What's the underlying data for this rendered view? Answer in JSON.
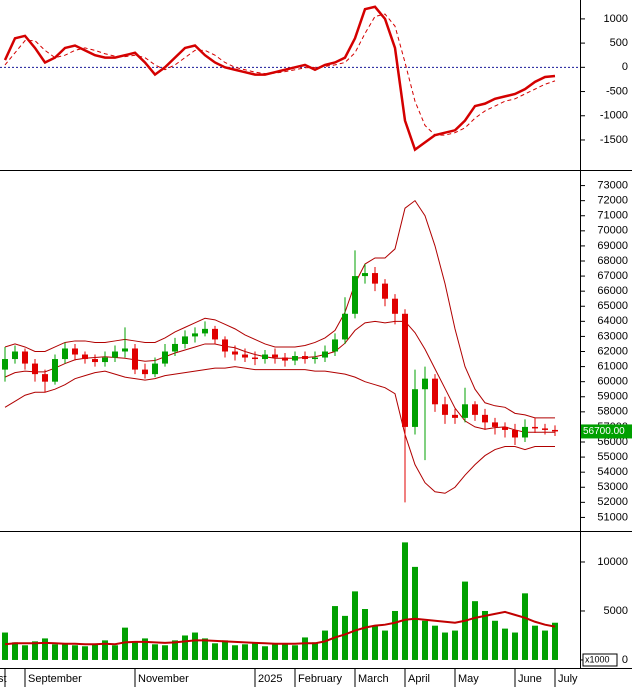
{
  "chart_data": [
    {
      "type": "line",
      "ylim": [
        -2120,
        1390
      ],
      "yticks": [
        1000,
        500,
        0,
        -500,
        -1000,
        -1500
      ],
      "zero_line": 0,
      "series": [
        {
          "color": "#d40000",
          "style": "solid",
          "values": [
            150,
            600,
            650,
            400,
            100,
            200,
            400,
            450,
            350,
            250,
            200,
            200,
            250,
            300,
            100,
            -150,
            0,
            200,
            400,
            450,
            250,
            100,
            0,
            -50,
            -100,
            -150,
            -150,
            -100,
            -50,
            0,
            50,
            -50,
            50,
            100,
            200,
            600,
            1200,
            1250,
            1000,
            400,
            -1100,
            -1700,
            -1550,
            -1400,
            -1350,
            -1300,
            -1100,
            -800,
            -750,
            -650,
            -600,
            -550,
            -450,
            -300,
            -200,
            -180
          ]
        },
        {
          "color": "#d40000",
          "style": "dashed",
          "values": [
            50,
            300,
            550,
            550,
            350,
            200,
            250,
            350,
            400,
            350,
            280,
            230,
            220,
            250,
            200,
            50,
            -50,
            50,
            200,
            350,
            350,
            250,
            100,
            0,
            -50,
            -100,
            -130,
            -120,
            -90,
            -50,
            -10,
            0,
            20,
            50,
            100,
            300,
            700,
            1050,
            1100,
            850,
            100,
            -700,
            -1200,
            -1400,
            -1400,
            -1350,
            -1250,
            -1050,
            -900,
            -800,
            -700,
            -650,
            -550,
            -450,
            -350,
            -280
          ]
        }
      ]
    },
    {
      "type": "candlestick",
      "ylim": [
        50100,
        73900
      ],
      "yticks": [
        51000,
        52000,
        53000,
        54000,
        55000,
        56000,
        57000,
        58000,
        59000,
        60000,
        61000,
        62000,
        63000,
        64000,
        65000,
        66000,
        67000,
        68000,
        69000,
        70000,
        71000,
        72000,
        73000
      ],
      "up_color": "#00a000",
      "down_color": "#e00000",
      "open": [
        60800,
        61500,
        62000,
        61200,
        60500,
        60000,
        61500,
        62200,
        61800,
        61500,
        61300,
        61600,
        62000,
        62200,
        60800,
        60500,
        61200,
        62000,
        62500,
        63000,
        63200,
        63500,
        62800,
        62000,
        61800,
        61600,
        61500,
        61800,
        61600,
        61400,
        61700,
        61500,
        61600,
        62000,
        62800,
        64500,
        67000,
        67200,
        66500,
        65500,
        64500,
        57000,
        59500,
        60200,
        58500,
        57800,
        57600,
        58500,
        57800,
        57300,
        57000,
        56800,
        56300,
        57000,
        56900,
        56800
      ],
      "high": [
        62300,
        62400,
        62200,
        61500,
        60800,
        61800,
        62600,
        62500,
        62000,
        61800,
        62000,
        62400,
        63600,
        62500,
        61200,
        61600,
        62500,
        62900,
        63400,
        63600,
        64000,
        63700,
        63000,
        62400,
        62200,
        62000,
        62100,
        62200,
        61900,
        62000,
        62000,
        62000,
        62400,
        63200,
        65600,
        68700,
        67800,
        67600,
        66800,
        65800,
        64800,
        60800,
        61000,
        60500,
        59000,
        58200,
        59600,
        58700,
        58200,
        57600,
        57300,
        57200,
        57500,
        57600,
        57200,
        57100
      ],
      "low": [
        60000,
        61200,
        60800,
        60000,
        59300,
        59800,
        61200,
        61400,
        61200,
        61000,
        61000,
        61300,
        61600,
        60500,
        60200,
        60300,
        61000,
        61700,
        62200,
        62600,
        63000,
        62500,
        61600,
        61400,
        61300,
        61100,
        61200,
        61200,
        61000,
        61100,
        61200,
        61200,
        61300,
        61700,
        62500,
        64200,
        66500,
        66000,
        65000,
        63800,
        52000,
        56500,
        54800,
        58000,
        57200,
        57200,
        57300,
        57400,
        56800,
        56500,
        56300,
        55800,
        56000,
        56600,
        56500,
        56400
      ],
      "close": [
        61500,
        62000,
        61200,
        60500,
        60000,
        61500,
        62200,
        61800,
        61500,
        61300,
        61600,
        62000,
        62200,
        60800,
        60500,
        61200,
        62000,
        62500,
        63000,
        63200,
        63500,
        62800,
        62000,
        61800,
        61600,
        61500,
        61800,
        61600,
        61400,
        61700,
        61500,
        61600,
        62000,
        62800,
        64500,
        67000,
        67200,
        66500,
        65500,
        64500,
        57000,
        59500,
        60200,
        58500,
        57800,
        57600,
        58500,
        57800,
        57300,
        57000,
        56800,
        56300,
        57000,
        56900,
        56800,
        56700
      ],
      "last_price": {
        "value": 56700,
        "label": "56700.00"
      },
      "series": [
        {
          "color": "#b00000",
          "values": [
            62300,
            62500,
            62300,
            62000,
            62000,
            62300,
            62600,
            62700,
            62700,
            62600,
            62600,
            62700,
            62800,
            62700,
            62600,
            62600,
            62900,
            63300,
            63600,
            63900,
            64200,
            64100,
            63800,
            63500,
            63100,
            62800,
            62500,
            62300,
            62300,
            62300,
            62400,
            62600,
            62900,
            63400,
            64600,
            66500,
            67800,
            68200,
            68200,
            68800,
            71500,
            72000,
            71000,
            69000,
            66500,
            63500,
            61000,
            59500,
            58600,
            58400,
            58300,
            57900,
            57800,
            57600,
            57600,
            57600
          ]
        },
        {
          "color": "#b00000",
          "values": [
            60300,
            60600,
            60700,
            60650,
            60650,
            60900,
            61200,
            61450,
            61550,
            61600,
            61650,
            61600,
            61550,
            61450,
            61350,
            61400,
            61650,
            61900,
            62100,
            62300,
            62500,
            62500,
            62350,
            62250,
            62000,
            61800,
            61650,
            61550,
            61550,
            61550,
            61600,
            61650,
            61800,
            62000,
            62550,
            63400,
            63900,
            64000,
            63900,
            64000,
            64000,
            63250,
            62150,
            60850,
            59550,
            58250,
            57400,
            57000,
            56850,
            56950,
            57000,
            56800,
            56650,
            56650,
            56650,
            56650
          ]
        },
        {
          "color": "#b00000",
          "values": [
            58300,
            58700,
            59100,
            59300,
            59300,
            59500,
            59800,
            60200,
            60400,
            60600,
            60700,
            60500,
            60300,
            60200,
            60100,
            60200,
            60400,
            60500,
            60600,
            60700,
            60800,
            60900,
            60900,
            61000,
            60900,
            60800,
            60800,
            60800,
            60800,
            60800,
            60800,
            60700,
            60700,
            60600,
            60500,
            60300,
            60000,
            59800,
            59600,
            59200,
            56500,
            54500,
            53300,
            52700,
            52600,
            53000,
            53800,
            54500,
            55100,
            55500,
            55700,
            55700,
            55500,
            55700,
            55700,
            55700
          ]
        }
      ]
    },
    {
      "type": "bar",
      "ylim": [
        -820,
        13060
      ],
      "yticks": [
        10000,
        5000,
        0
      ],
      "unit_label": "x1000",
      "color": "#00a000",
      "categories": [
        "st",
        null,
        "September",
        null,
        null,
        null,
        null,
        null,
        null,
        null,
        null,
        null,
        null,
        "November",
        null,
        null,
        null,
        null,
        null,
        null,
        null,
        null,
        null,
        null,
        null,
        "2025",
        null,
        null,
        null,
        "February",
        null,
        null,
        null,
        null,
        null,
        "March",
        null,
        null,
        null,
        null,
        "April",
        null,
        null,
        null,
        null,
        "May",
        null,
        null,
        null,
        null,
        null,
        "June",
        null,
        null,
        null,
        "July"
      ],
      "values": [
        2800,
        1800,
        1500,
        1900,
        2200,
        1600,
        1700,
        1500,
        1400,
        1600,
        2000,
        1500,
        3300,
        1800,
        2200,
        1600,
        1500,
        2000,
        2500,
        2800,
        2200,
        1700,
        2000,
        1500,
        1600,
        1800,
        1400,
        1600,
        1700,
        1500,
        2300,
        1800,
        3000,
        5500,
        4500,
        7000,
        5200,
        3500,
        3000,
        5000,
        12000,
        9500,
        4000,
        3500,
        2800,
        3000,
        8000,
        6000,
        5000,
        4000,
        3200,
        2800,
        6800,
        3500,
        3000,
        3800
      ],
      "series": [
        {
          "color": "#c00000",
          "values": [
            1600,
            1700,
            1700,
            1700,
            1750,
            1700,
            1650,
            1650,
            1600,
            1600,
            1650,
            1600,
            1800,
            1850,
            1850,
            1800,
            1750,
            1800,
            1900,
            2000,
            2000,
            1950,
            1900,
            1850,
            1800,
            1750,
            1700,
            1650,
            1650,
            1650,
            1700,
            1700,
            1900,
            2300,
            2600,
            3000,
            3300,
            3500,
            3600,
            3800,
            4100,
            4200,
            4100,
            4000,
            3900,
            3800,
            4000,
            4300,
            4500,
            4700,
            4900,
            4600,
            4300,
            3900,
            3600,
            3400
          ]
        }
      ]
    }
  ]
}
